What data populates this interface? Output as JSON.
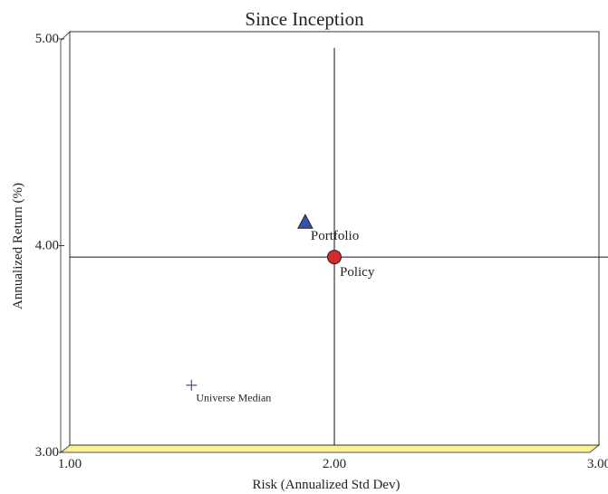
{
  "chart_data": {
    "type": "scatter",
    "title": "Since Inception",
    "xlabel": "Risk (Annualized Std Dev)",
    "ylabel": "Annualized Return (%)",
    "xlim": [
      1.0,
      3.0
    ],
    "ylim": [
      3.0,
      5.0
    ],
    "x_ticks": [
      "1.00",
      "2.00",
      "3.00"
    ],
    "y_ticks": [
      "3.00",
      "4.00",
      "5.00"
    ],
    "x_tick_values": [
      1.0,
      2.0,
      3.0
    ],
    "y_tick_values": [
      3.0,
      4.0,
      5.0
    ],
    "grid": false,
    "reference_lines": {
      "x": 2.0,
      "y": 3.91
    },
    "points": [
      {
        "label": "Portfolio",
        "x": 1.89,
        "y": 4.08,
        "marker": "triangle",
        "color": "#3553a8"
      },
      {
        "label": "Policy",
        "x": 2.0,
        "y": 3.91,
        "marker": "circle",
        "color": "#d42a2a"
      },
      {
        "label": "Universe Median",
        "x": 1.46,
        "y": 3.29,
        "marker": "plus",
        "color": "#3553a8"
      }
    ],
    "floor_color": "#fbf28f"
  }
}
